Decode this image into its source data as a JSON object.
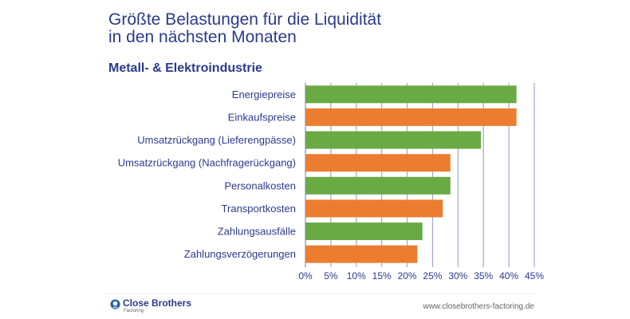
{
  "header": {
    "title_line1": "Größte Belastungen für die Liquidität",
    "title_line2": "in den nächsten Monaten",
    "subtitle": "Metall- & Elektroindustrie"
  },
  "chart_data": {
    "type": "bar",
    "orientation": "horizontal",
    "title": "Größte Belastungen für die Liquidität in den nächsten Monaten",
    "subtitle": "Metall- & Elektroindustrie",
    "categories": [
      "Energiepreise",
      "Einkaufspreise",
      "Umsatzrückgang (Lieferengpässe)",
      "Umsatzrückgang (Nachfragerückgang)",
      "Personalkosten",
      "Transportkosten",
      "Zahlungsausfälle",
      "Zahlungsverzögerungen"
    ],
    "values": [
      41.5,
      41.5,
      34.5,
      28.5,
      28.5,
      27,
      23,
      22
    ],
    "bar_colors": [
      "#6aaa45",
      "#ec7d30",
      "#6aaa45",
      "#ec7d30",
      "#6aaa45",
      "#ec7d30",
      "#6aaa45",
      "#ec7d30"
    ],
    "xlabel": "",
    "ylabel": "",
    "xlim": [
      0,
      45
    ],
    "xticks": [
      0,
      5,
      10,
      15,
      20,
      25,
      30,
      35,
      40,
      45
    ],
    "xtick_labels": [
      "0%",
      "5%",
      "10%",
      "15%",
      "20%",
      "25%",
      "30%",
      "35%",
      "40%",
      "45%"
    ],
    "grid": true,
    "grid_color": "#9fa8d0",
    "legend": "none"
  },
  "footer": {
    "brand": "Close Brothers",
    "brand_sub": "Factoring",
    "url": "www.closebrothers-factoring.de"
  },
  "colors": {
    "text": "#2b3a8c",
    "green": "#6aaa45",
    "orange": "#ec7d30"
  }
}
